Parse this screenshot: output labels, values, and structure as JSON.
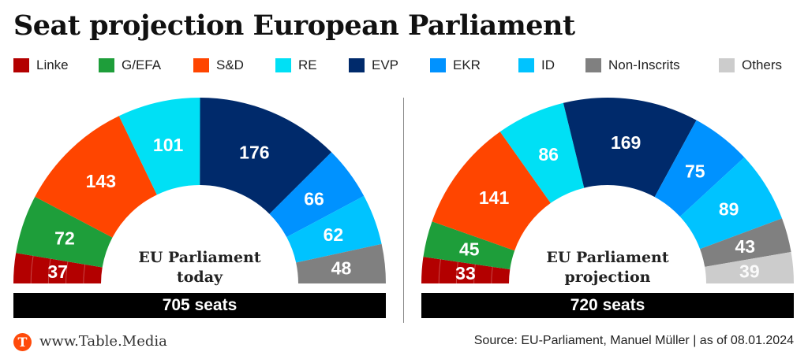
{
  "title": "Seat projection European Parliament",
  "legend": [
    {
      "key": "linke",
      "label": "Linke",
      "color": "#b30000"
    },
    {
      "key": "gefa",
      "label": "G/EFA",
      "color": "#1e9e3a"
    },
    {
      "key": "sd",
      "label": "S&D",
      "color": "#ff4500"
    },
    {
      "key": "re",
      "label": "RE",
      "color": "#00e0f5"
    },
    {
      "key": "evp",
      "label": "EVP",
      "color": "#002a6b"
    },
    {
      "key": "ekr",
      "label": "EKR",
      "color": "#0092ff"
    },
    {
      "key": "id",
      "label": "ID",
      "color": "#00c3ff"
    },
    {
      "key": "ni",
      "label": "Non-Inscrits",
      "color": "#808080"
    },
    {
      "key": "others",
      "label": "Others",
      "color": "#cccccc"
    }
  ],
  "chart_data": [
    {
      "type": "pie",
      "subtype": "parliament-semicircle",
      "title": "EU Parliament today",
      "title_lines": [
        "EU Parliament",
        "today"
      ],
      "total_label": "705 seats",
      "total": 705,
      "categories": [
        "Linke",
        "G/EFA",
        "S&D",
        "RE",
        "EVP",
        "EKR",
        "ID",
        "Non-Inscrits"
      ],
      "values": [
        37,
        72,
        143,
        101,
        176,
        66,
        62,
        48
      ],
      "keys": [
        "linke",
        "gefa",
        "sd",
        "re",
        "evp",
        "ekr",
        "id",
        "ni"
      ]
    },
    {
      "type": "pie",
      "subtype": "parliament-semicircle",
      "title": "EU Parliament projection",
      "title_lines": [
        "EU Parliament",
        "projection"
      ],
      "total_label": "720 seats",
      "total": 720,
      "categories": [
        "Linke",
        "G/EFA",
        "S&D",
        "RE",
        "EVP",
        "EKR",
        "ID",
        "Non-Inscrits",
        "Others"
      ],
      "values": [
        33,
        45,
        141,
        86,
        169,
        75,
        89,
        43,
        39
      ],
      "keys": [
        "linke",
        "gefa",
        "sd",
        "re",
        "evp",
        "ekr",
        "id",
        "ni",
        "others"
      ]
    }
  ],
  "footer": {
    "logo_letter": "T",
    "site": "www.Table.Media",
    "source": "Source: EU-Parliament, Manuel Müller | as of 08.01.2024"
  }
}
